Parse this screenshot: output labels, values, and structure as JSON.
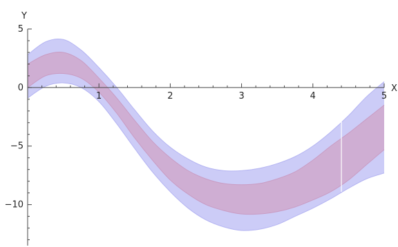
{
  "chart_data": {
    "type": "area",
    "xlabel": "X",
    "ylabel": "Y",
    "xlim": [
      0,
      5
    ],
    "ylim": [
      -13.5,
      5
    ],
    "x_ticks": [
      1,
      2,
      3,
      4,
      5
    ],
    "x_tick_labels": [
      "1",
      "2",
      "3",
      "4",
      "5"
    ],
    "y_ticks": [
      5,
      0,
      -5,
      -10
    ],
    "y_tick_labels": [
      "5",
      "0",
      "−5",
      "−10"
    ],
    "x": [
      0,
      0.25,
      0.5,
      0.75,
      1,
      1.25,
      1.5,
      1.75,
      2,
      2.25,
      2.5,
      2.75,
      3,
      3.25,
      3.5,
      3.75,
      4,
      4.25,
      4.5,
      4.75,
      5
    ],
    "series": [
      {
        "color": "#c9c9f7",
        "lower": [
          -0.9,
          0.1,
          0.4,
          0.0,
          -1.2,
          -3.1,
          -5.2,
          -7.2,
          -8.9,
          -10.3,
          -11.3,
          -11.9,
          -12.2,
          -12.1,
          -11.7,
          -11.0,
          -10.3,
          -9.5,
          -8.6,
          -7.8,
          -7.3
        ],
        "upper": [
          2.8,
          3.9,
          4.1,
          3.2,
          1.7,
          0.0,
          -1.9,
          -3.7,
          -5.1,
          -6.1,
          -6.8,
          -7.1,
          -7.1,
          -6.9,
          -6.5,
          -5.9,
          -5.0,
          -3.8,
          -2.4,
          -0.8,
          0.5
        ]
      },
      {
        "color": "#cfa8cd",
        "lower": [
          0.0,
          1.0,
          1.2,
          0.8,
          -0.4,
          -2.2,
          -4.3,
          -6.2,
          -7.9,
          -9.1,
          -10.0,
          -10.5,
          -10.8,
          -10.8,
          -10.6,
          -10.2,
          -9.6,
          -8.9,
          -7.9,
          -6.6,
          -5.3
        ],
        "upper": [
          2.0,
          2.8,
          3.0,
          2.3,
          0.8,
          -0.9,
          -2.8,
          -4.6,
          -6.0,
          -7.1,
          -7.8,
          -8.2,
          -8.3,
          -8.2,
          -7.8,
          -7.2,
          -6.2,
          -5.0,
          -3.9,
          -2.7,
          -1.5
        ]
      }
    ],
    "break_x": 4.4,
    "grid": false,
    "legend": "none"
  }
}
